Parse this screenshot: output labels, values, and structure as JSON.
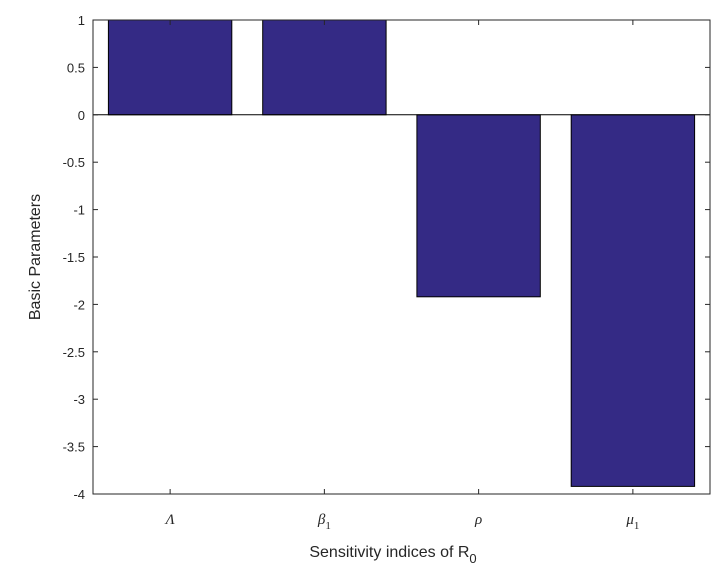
{
  "chart_data": {
    "type": "bar",
    "categories": [
      "Λ",
      "β₁",
      "ρ",
      "μ₁"
    ],
    "category_labels": [
      {
        "base": "Λ",
        "sub": ""
      },
      {
        "base": "β",
        "sub": "1"
      },
      {
        "base": "ρ",
        "sub": ""
      },
      {
        "base": "μ",
        "sub": "1"
      }
    ],
    "values": [
      1,
      1,
      -1.92,
      -3.92
    ],
    "xlabel": "Sensitivity indices of R",
    "xlabel_sub": "0",
    "ylabel": "Basic Parameters",
    "ylim": [
      -4,
      1
    ],
    "yticks": [
      1,
      0.5,
      0,
      -0.5,
      -1,
      -1.5,
      -2,
      -2.5,
      -3,
      -3.5,
      -4
    ],
    "ytick_labels": [
      "1",
      "0.5",
      "0",
      "-0.5",
      "-1",
      "-1.5",
      "-2",
      "-2.5",
      "-3",
      "-3.5",
      "-4"
    ],
    "bar_color": "#342a85",
    "bar_edge_color": "#000000",
    "grid": false
  }
}
